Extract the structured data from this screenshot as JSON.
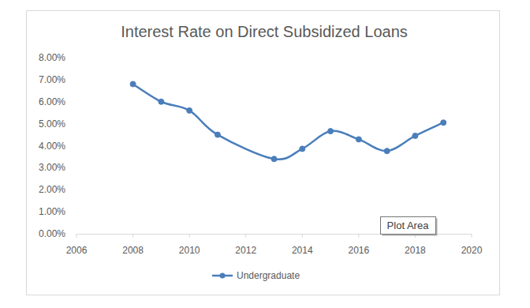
{
  "chart_data": {
    "type": "line",
    "title": "Interest Rate on Direct Subsidized Loans",
    "x": [
      2008,
      2009,
      2010,
      2011,
      2013,
      2014,
      2015,
      2016,
      2017,
      2018,
      2019
    ],
    "series": [
      {
        "name": "Undergraduate",
        "color": "#4a7ebb",
        "marker": "circle",
        "line_style": "smooth",
        "values": [
          6.8,
          6.0,
          5.6,
          4.5,
          3.4,
          3.86,
          4.66,
          4.29,
          3.76,
          4.45,
          5.05
        ]
      }
    ],
    "xlim": [
      2006,
      2020
    ],
    "xticks": [
      2006,
      2008,
      2010,
      2012,
      2014,
      2016,
      2018,
      2020
    ],
    "ylim": [
      0,
      8
    ],
    "yticks": [
      {
        "value": 0,
        "label": "0.00%"
      },
      {
        "value": 1,
        "label": "1.00%"
      },
      {
        "value": 2,
        "label": "2.00%"
      },
      {
        "value": 3,
        "label": "3.00%"
      },
      {
        "value": 4,
        "label": "4.00%"
      },
      {
        "value": 5,
        "label": "5.00%"
      },
      {
        "value": 6,
        "label": "6.00%"
      },
      {
        "value": 7,
        "label": "7.00%"
      },
      {
        "value": 8,
        "label": "8.00%"
      }
    ],
    "grid": false,
    "legend": "bottom",
    "annotations": [
      "Plot Area"
    ]
  }
}
